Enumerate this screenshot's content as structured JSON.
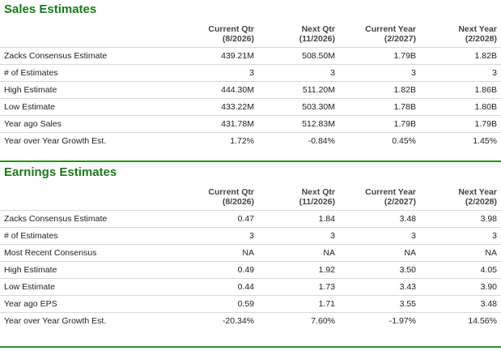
{
  "sales": {
    "title": "Sales Estimates",
    "columns": [
      {
        "line1": "Current Qtr",
        "line2": "(8/2026)"
      },
      {
        "line1": "Next Qtr",
        "line2": "(11/2026)"
      },
      {
        "line1": "Current Year",
        "line2": "(2/2027)"
      },
      {
        "line1": "Next Year",
        "line2": "(2/2028)"
      }
    ],
    "rows": [
      {
        "label": "Zacks Consensus Estimate",
        "values": [
          "439.21M",
          "508.50M",
          "1.79B",
          "1.82B"
        ]
      },
      {
        "label": "# of Estimates",
        "values": [
          "3",
          "3",
          "3",
          "3"
        ]
      },
      {
        "label": "High Estimate",
        "values": [
          "444.30M",
          "511.20M",
          "1.82B",
          "1.86B"
        ]
      },
      {
        "label": "Low Estimate",
        "values": [
          "433.22M",
          "503.30M",
          "1.78B",
          "1.80B"
        ]
      },
      {
        "label": "Year ago Sales",
        "values": [
          "431.78M",
          "512.83M",
          "1.79B",
          "1.79B"
        ]
      },
      {
        "label": "Year over Year Growth Est.",
        "values": [
          "1.72%",
          "-0.84%",
          "0.45%",
          "1.45%"
        ]
      }
    ]
  },
  "earnings": {
    "title": "Earnings Estimates",
    "columns": [
      {
        "line1": "Current Qtr",
        "line2": "(8/2026)"
      },
      {
        "line1": "Next Qtr",
        "line2": "(11/2026)"
      },
      {
        "line1": "Current Year",
        "line2": "(2/2027)"
      },
      {
        "line1": "Next Year",
        "line2": "(2/2028)"
      }
    ],
    "rows": [
      {
        "label": "Zacks Consensus Estimate",
        "values": [
          "0.47",
          "1.84",
          "3.48",
          "3.98"
        ]
      },
      {
        "label": "# of Estimates",
        "values": [
          "3",
          "3",
          "3",
          "3"
        ]
      },
      {
        "label": "Most Recent Consensus",
        "values": [
          "NA",
          "NA",
          "NA",
          "NA"
        ]
      },
      {
        "label": "High Estimate",
        "values": [
          "0.49",
          "1.92",
          "3.50",
          "4.05"
        ]
      },
      {
        "label": "Low Estimate",
        "values": [
          "0.44",
          "1.73",
          "3.43",
          "3.90"
        ]
      },
      {
        "label": "Year ago EPS",
        "values": [
          "0.59",
          "1.71",
          "3.55",
          "3.48"
        ]
      },
      {
        "label": "Year over Year Growth Est.",
        "values": [
          "-20.34%",
          "7.60%",
          "-1.97%",
          "14.56%"
        ]
      }
    ]
  },
  "colors": {
    "title_green": "#1a7a1a",
    "rule_green": "#2e8b2e",
    "row_border": "#d8d8d8"
  }
}
